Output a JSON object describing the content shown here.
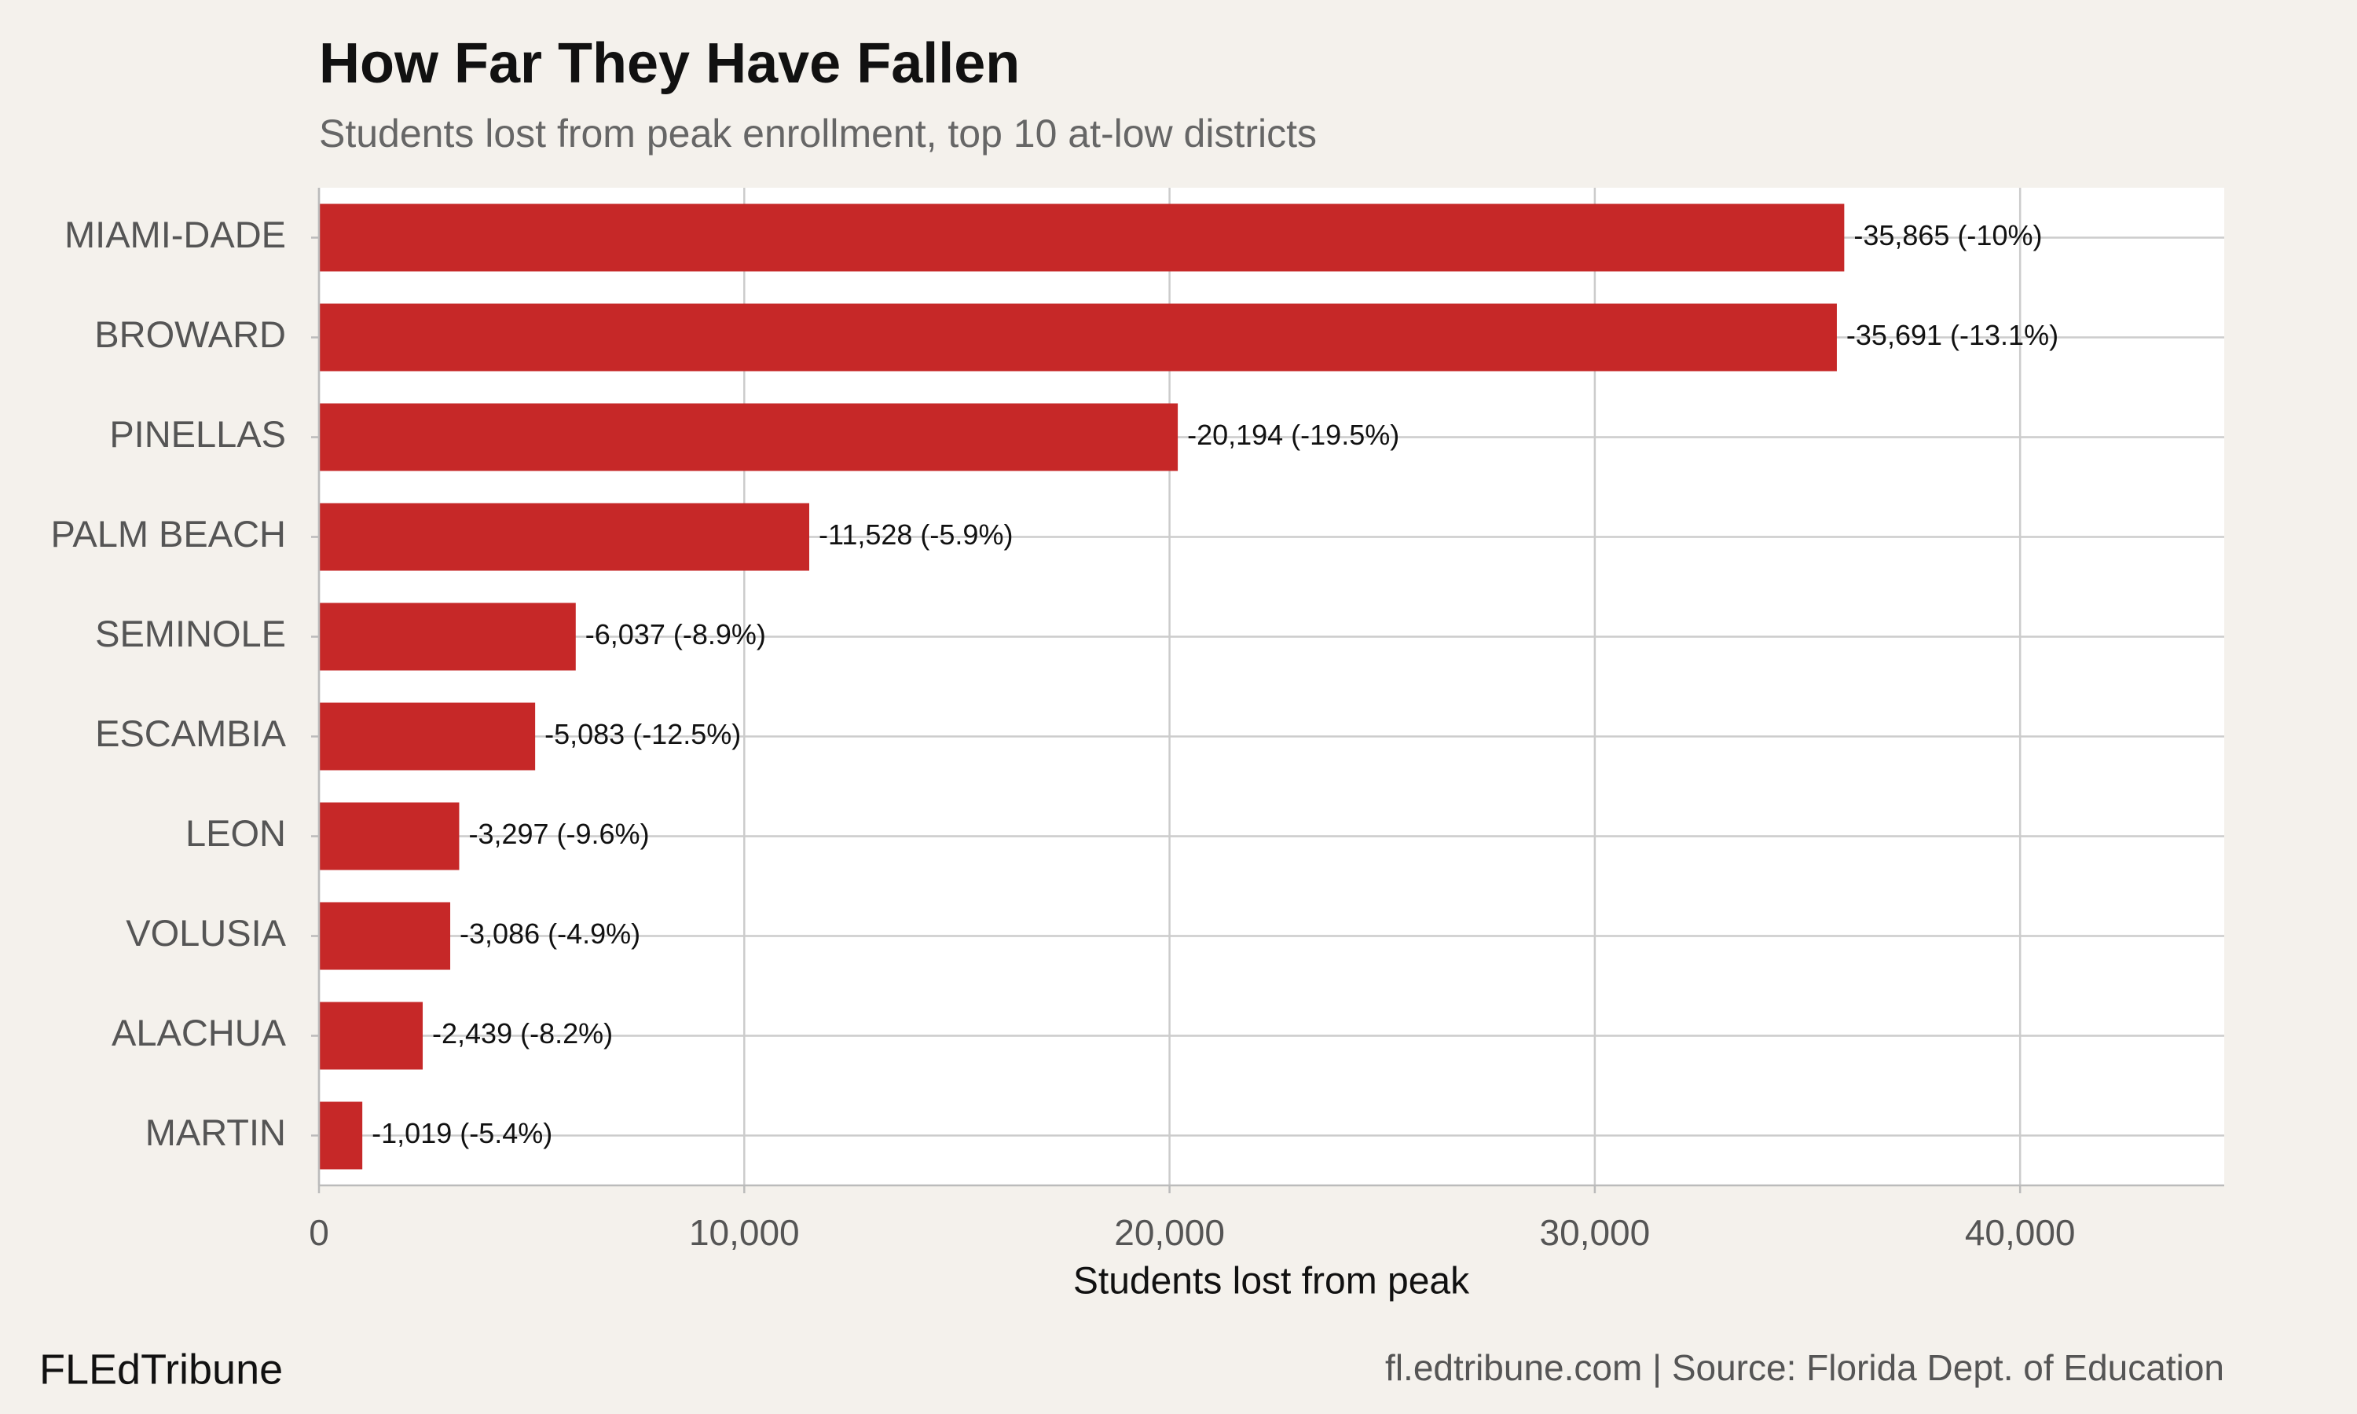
{
  "chart_data": {
    "type": "bar",
    "orientation": "horizontal",
    "title": "How Far They Have Fallen",
    "subtitle": "Students lost from peak enrollment, top 10 at-low districts",
    "x_label": "Students lost from peak",
    "categories": [
      "MIAMI-DADE",
      "BROWARD",
      "PINELLAS",
      "PALM BEACH",
      "SEMINOLE",
      "ESCAMBIA",
      "LEON",
      "VOLUSIA",
      "ALACHUA",
      "MARTIN"
    ],
    "values": [
      35865,
      35691,
      20194,
      11528,
      6037,
      5083,
      3297,
      3086,
      2439,
      1019
    ],
    "value_labels": [
      "-35,865 (-10%)",
      "-35,691 (-13.1%)",
      "-20,194 (-19.5%)",
      "-11,528 (-5.9%)",
      "-6,037 (-8.9%)",
      "-5,083 (-12.5%)",
      "-3,297 (-9.6%)",
      "-3,086 (-4.9%)",
      "-2,439 (-8.2%)",
      "-1,019 (-5.4%)"
    ],
    "color": "#c62828",
    "xlim": [
      0,
      44800
    ],
    "xticks": [
      0,
      {
        "value": 10000,
        "label": "10,000"
      },
      {
        "value": 20000,
        "label": "20,000"
      },
      {
        "value": 30000,
        "label": "30,000"
      },
      {
        "value": 40000,
        "label": "40,000"
      }
    ],
    "grid": true,
    "brand": "FLEdTribune",
    "caption": "fl.edtribune.com | Source: Florida Dept. of Education"
  }
}
